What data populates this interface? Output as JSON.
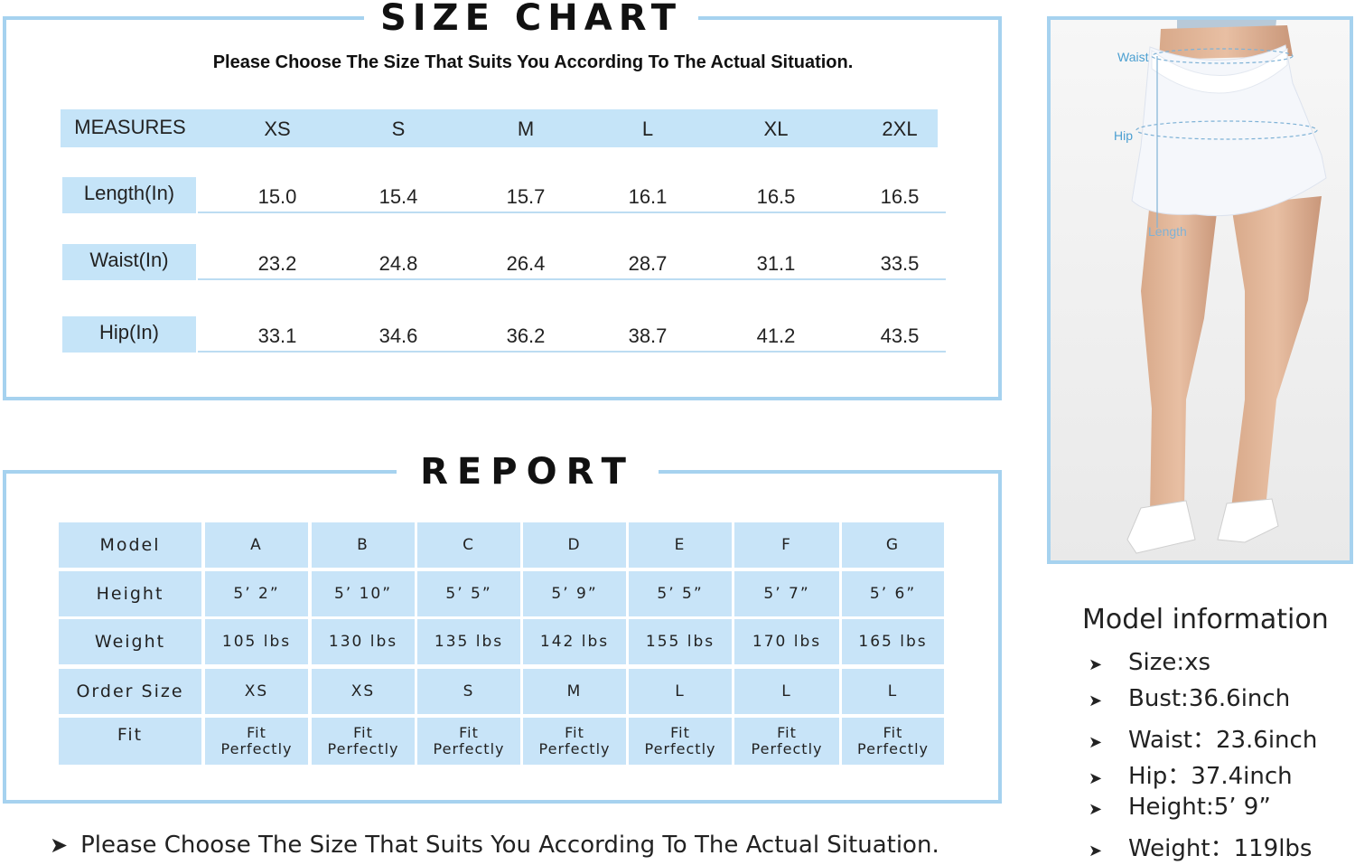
{
  "size_chart": {
    "title": "SIZE CHART",
    "subtitle": "Please Choose The Size That Suits You According To The Actual Situation.",
    "header": [
      "MEASURES",
      "XS",
      "S",
      "M",
      "L",
      "XL",
      "2XL"
    ],
    "rows": [
      {
        "label": "Length(In)",
        "values": [
          "15.0",
          "15.4",
          "15.7",
          "16.1",
          "16.5",
          "16.5"
        ]
      },
      {
        "label": "Waist(In)",
        "values": [
          "23.2",
          "24.8",
          "26.4",
          "28.7",
          "31.1",
          "33.5"
        ]
      },
      {
        "label": "Hip(In)",
        "values": [
          "33.1",
          "34.6",
          "36.2",
          "38.7",
          "41.2",
          "43.5"
        ]
      }
    ]
  },
  "report": {
    "title": "REPORT",
    "rows": [
      {
        "label": "Model",
        "values": [
          "A",
          "B",
          "C",
          "D",
          "E",
          "F",
          "G"
        ]
      },
      {
        "label": "Height",
        "values": [
          "5’ 2”",
          "5’ 10”",
          "5’ 5”",
          "5’ 9”",
          "5’ 5”",
          "5’ 7”",
          "5’ 6”"
        ]
      },
      {
        "label": "Weight",
        "values": [
          "105 lbs",
          "130 lbs",
          "135 lbs",
          "142 lbs",
          "155 lbs",
          "170 lbs",
          "165 lbs"
        ]
      },
      {
        "label": "Order Size",
        "values": [
          "XS",
          "XS",
          "S",
          "M",
          "L",
          "L",
          "L"
        ]
      },
      {
        "label": "Fit",
        "values": [
          "Fit\nPerfectly",
          "Fit\nPerfectly",
          "Fit\nPerfectly",
          "Fit\nPerfectly",
          "Fit\nPerfectly",
          "Fit\nPerfectly",
          "Fit\nPerfectly"
        ]
      }
    ]
  },
  "bottom_note": "Please Choose The Size That Suits You According To The Actual Situation.",
  "photo": {
    "labels": {
      "waist": "Waist",
      "hip": "Hip",
      "length": "Length"
    }
  },
  "model_info": {
    "title": "Model information",
    "items": [
      "Size:xs",
      "Bust:36.6inch",
      "Waist：23.6inch",
      "Hip：37.4inch",
      "Height:5’ 9”",
      "Weight：119lbs"
    ]
  },
  "colors": {
    "accent": "#a6d2ef",
    "cell_fill": "#c8e4f8"
  }
}
